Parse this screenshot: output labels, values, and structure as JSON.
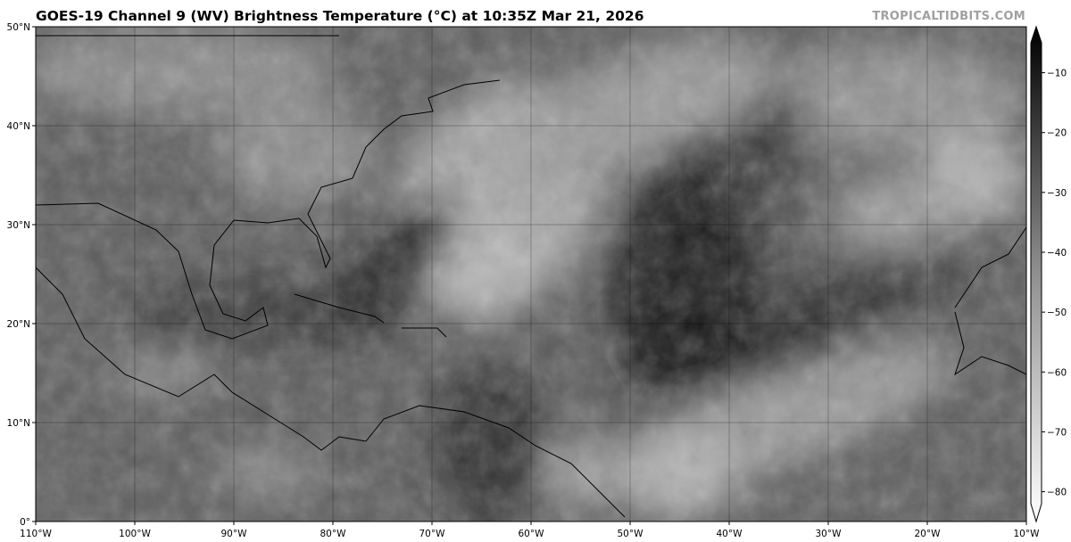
{
  "header": {
    "title": "GOES-19 Channel 9 (WV) Brightness Temperature (°C) at 10:35Z Mar 21, 2026",
    "brand": "TROPICALTIDBITS.COM"
  },
  "map": {
    "projection": "equirectangular",
    "lon_range": [
      -110,
      -10
    ],
    "lat_range": [
      0,
      50
    ],
    "lon_ticks": [
      "110°W",
      "100°W",
      "90°W",
      "80°W",
      "70°W",
      "60°W",
      "50°W",
      "40°W",
      "30°W",
      "20°W",
      "10°W"
    ],
    "lat_ticks": [
      "0°",
      "10°N",
      "20°N",
      "30°N",
      "40°N",
      "50°N"
    ],
    "gridlines": true
  },
  "colorbar": {
    "ticks": [
      "−10",
      "−20",
      "−30",
      "−40",
      "−50",
      "−60",
      "−70",
      "−80"
    ],
    "range": [
      -82,
      -5
    ],
    "colors": {
      "warm": "#000000",
      "cold": "#ffffff"
    },
    "extend": "both"
  }
}
